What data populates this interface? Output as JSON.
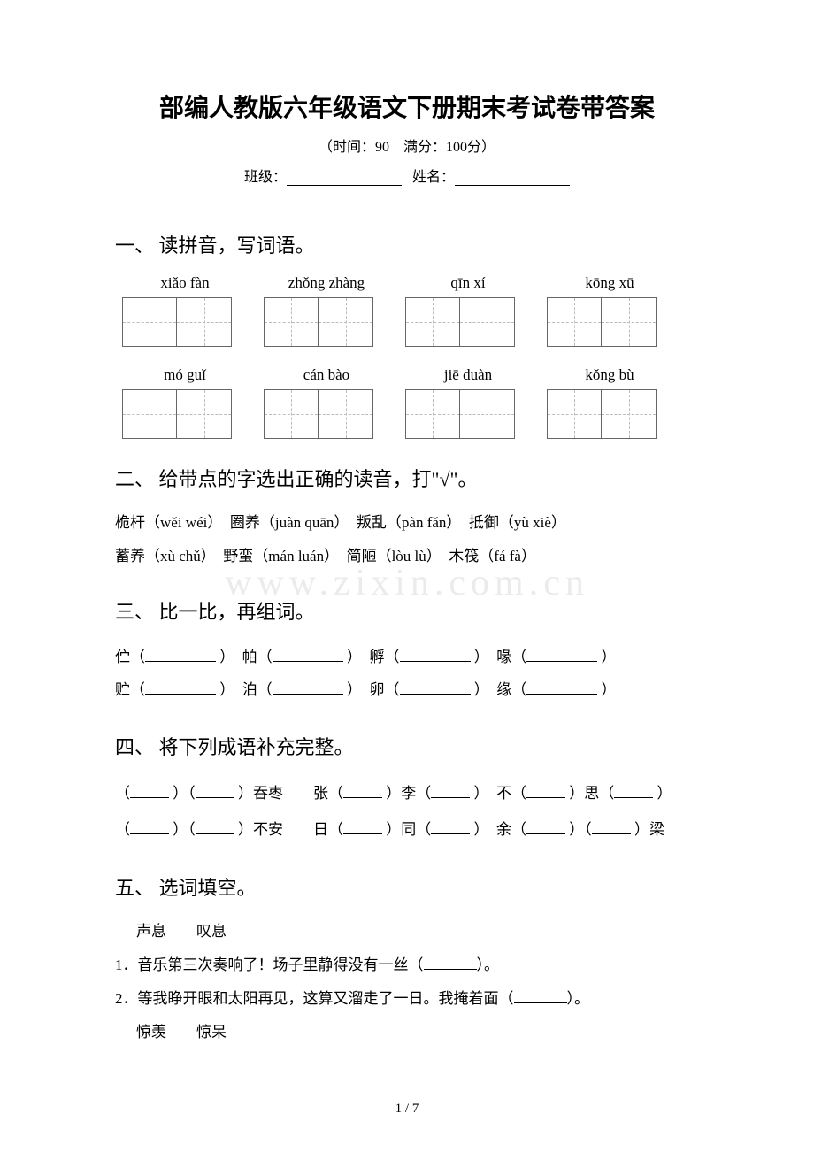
{
  "title": "部编人教版六年级语文下册期末考试卷带答案",
  "subtitle": "（时间：90　满分：100分）",
  "form": {
    "class_label": "班级：",
    "name_label": "姓名："
  },
  "watermark": "www.zixin.com.cn",
  "page_num": "1 / 7",
  "sections": {
    "s1": {
      "heading": "一、 读拼音，写词语。",
      "row1": [
        "xiǎo fàn",
        "zhǒng zhàng",
        "qīn xí",
        "kōng xū"
      ],
      "row2": [
        "mó guǐ",
        "cán bào",
        "jiē duàn",
        "kǒng bù"
      ]
    },
    "s2": {
      "heading": "二、 给带点的字选出正确的读音，打\"√\"。",
      "line1": "桅杆（wěi wéi）　圈养（juàn quān）　叛乱（pàn fǎn）　抵御（yù xiè）",
      "line2": "蓄养（xù chǔ）　野蛮（mán luán）　简陋（lòu lù）　木筏（fá fà）"
    },
    "s3": {
      "heading": "三、 比一比，再组词。",
      "row1": [
        "伫（",
        "）　帕（",
        "）　孵（",
        "）　喙（",
        "）"
      ],
      "row2": [
        "贮（",
        "）　泊（",
        "）　卵（",
        "）　缘（",
        "）"
      ]
    },
    "s4": {
      "heading": "四、 将下列成语补充完整。",
      "row1_parts": [
        "（",
        "）（",
        "）吞枣　　张（",
        "）李（",
        "）　不（",
        "）思（",
        "）"
      ],
      "row2_parts": [
        "（",
        "）（",
        "）不安　　日（",
        "）同（",
        "）　余（",
        "）（",
        "）梁"
      ]
    },
    "s5": {
      "heading": "五、 选词填空。",
      "pair1": "声息　　叹息",
      "q1_pre": "1．音乐第三次奏响了！场子里静得没有一丝（",
      "q1_post": "）。",
      "q2_pre": "2．等我睁开眼和太阳再见，这算又溜走了一日。我掩着面（",
      "q2_post": "）。",
      "pair2": "惊羡　　惊呆"
    }
  }
}
